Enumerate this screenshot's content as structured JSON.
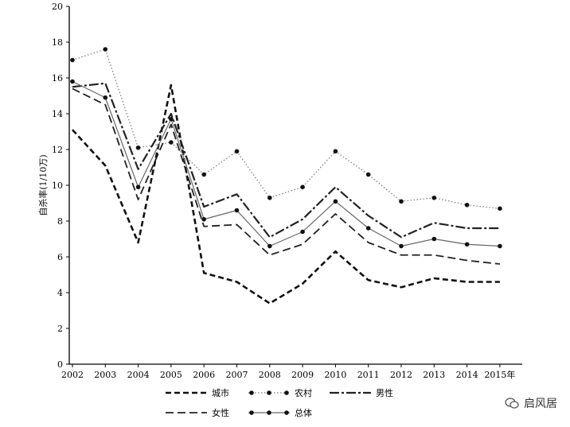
{
  "chart_data": {
    "type": "line",
    "ylabel": "自杀率(1/10万)",
    "ylim": [
      0,
      20
    ],
    "yticks": [
      "0",
      "2",
      "4",
      "6",
      "8",
      "10",
      "12",
      "14",
      "16",
      "18",
      "20"
    ],
    "categories": [
      "2002",
      "2003",
      "2004",
      "2005",
      "2006",
      "2007",
      "2008",
      "2009",
      "2010",
      "2011",
      "2012",
      "2013",
      "2014",
      "2015年"
    ],
    "series": [
      {
        "name": "城市",
        "values": [
          13.1,
          11.1,
          6.8,
          15.6,
          5.1,
          4.6,
          3.4,
          4.5,
          6.3,
          4.7,
          4.3,
          4.8,
          4.6,
          4.6
        ],
        "color": "#111111",
        "dash": "7,4",
        "width": 2.6,
        "marker": "none"
      },
      {
        "name": "农村",
        "values": [
          17.0,
          17.6,
          12.1,
          12.4,
          10.6,
          11.9,
          9.3,
          9.9,
          11.9,
          10.6,
          9.1,
          9.3,
          8.9,
          8.7
        ],
        "color": "#777777",
        "dash": "1.5,2.5",
        "width": 1.2,
        "marker": "dot"
      },
      {
        "name": "男性",
        "values": [
          15.5,
          15.7,
          10.9,
          14.0,
          8.8,
          9.5,
          7.1,
          8.1,
          9.9,
          8.3,
          7.1,
          7.9,
          7.6,
          7.6
        ],
        "color": "#222222",
        "dash": "12,3,3,3",
        "width": 2.2,
        "marker": "none"
      },
      {
        "name": "女性",
        "values": [
          15.4,
          14.5,
          9.2,
          13.4,
          7.7,
          7.8,
          6.1,
          6.7,
          8.4,
          6.8,
          6.1,
          6.1,
          5.8,
          5.6
        ],
        "color": "#222222",
        "dash": "10,5",
        "width": 1.8,
        "marker": "none"
      },
      {
        "name": "总体",
        "values": [
          15.8,
          14.9,
          9.9,
          13.7,
          8.1,
          8.6,
          6.6,
          7.4,
          9.1,
          7.6,
          6.6,
          7.0,
          6.7,
          6.6
        ],
        "color": "#666666",
        "dash": "",
        "width": 1.2,
        "marker": "dot"
      }
    ],
    "legend": {
      "position": "bottom"
    }
  },
  "watermark": {
    "text": "启风居"
  }
}
